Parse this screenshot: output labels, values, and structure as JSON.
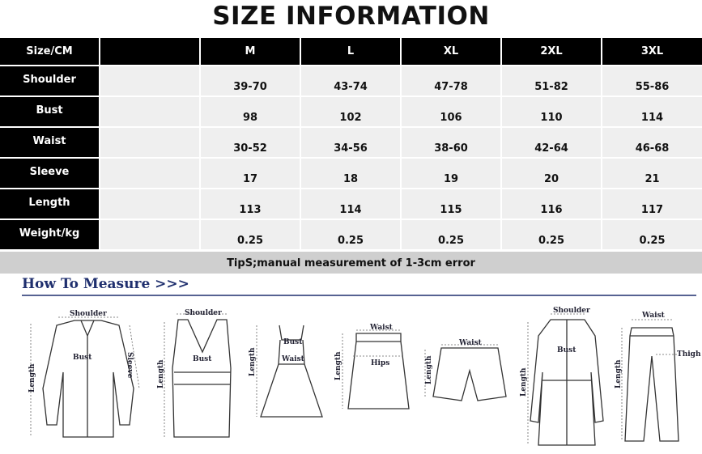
{
  "header": {
    "title": "SIZE INFORMATION"
  },
  "table": {
    "columns": [
      "Size/CM",
      "M",
      "L",
      "XL",
      "2XL",
      "3XL"
    ],
    "rows": [
      [
        "Shoulder",
        "39-70",
        "43-74",
        "47-78",
        "51-82",
        "55-86"
      ],
      [
        "Bust",
        "98",
        "102",
        "106",
        "110",
        "114"
      ],
      [
        "Waist",
        "30-52",
        "34-56",
        "38-60",
        "42-64",
        "46-68"
      ],
      [
        "Sleeve",
        "17",
        "18",
        "19",
        "20",
        "21"
      ],
      [
        "Length",
        "113",
        "114",
        "115",
        "116",
        "117"
      ],
      [
        "Weight/kg",
        "0.25",
        "0.25",
        "0.25",
        "0.25",
        "0.25"
      ]
    ]
  },
  "note": "TipS;manual measurement of 1-3cm error",
  "measure": {
    "title": "How To Measure >>>",
    "figures": [
      {
        "labels": [
          "Shoulder",
          "Bust",
          "Sleeve",
          "Length"
        ]
      },
      {
        "labels": [
          "Shoulder",
          "Bust",
          "Length"
        ]
      },
      {
        "labels": [
          "Bust",
          "Waist",
          "Length"
        ]
      },
      {
        "labels": [
          "Waist",
          "Hips",
          "Length"
        ]
      },
      {
        "labels": [
          "Waist",
          "Length"
        ]
      },
      {
        "labels": [
          "Shoulder",
          "Bust",
          "Length"
        ]
      },
      {
        "labels": [
          "Waist",
          "Thigh",
          "Length"
        ]
      }
    ]
  }
}
